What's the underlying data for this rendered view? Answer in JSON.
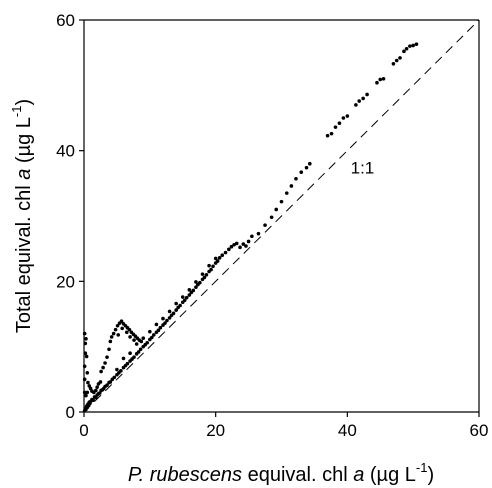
{
  "chart_data": {
    "type": "scatter",
    "title": "",
    "xlabel": {
      "italic_part": "P. rubescens",
      "mid": " equival. chl ",
      "italic_var": "a",
      "unit_open": " (µg L",
      "unit_sup": "-1",
      "unit_close": ")"
    },
    "ylabel": {
      "prefix": "Total equival. chl ",
      "italic_var": "a",
      "unit_open": " (µg L",
      "unit_sup": "-1",
      "unit_close": ")"
    },
    "xlim": [
      0,
      60
    ],
    "ylim": [
      0,
      60
    ],
    "xticks": [
      0,
      20,
      40,
      60
    ],
    "yticks": [
      0,
      20,
      40,
      60
    ],
    "x_tick_labels": [
      "0",
      "20",
      "40",
      "60"
    ],
    "y_tick_labels": [
      "0",
      "20",
      "40",
      "60"
    ],
    "grid": false,
    "reference_line": {
      "label": "1:1",
      "slope": 1,
      "style": "dashed",
      "label_position": [
        40.5,
        36.5
      ]
    },
    "marker_color": "#000000",
    "series": [
      {
        "points": [
          [
            0.1,
            0.2
          ],
          [
            0.2,
            0.5
          ],
          [
            0.3,
            0.4
          ],
          [
            0.4,
            0.9
          ],
          [
            0.5,
            0.7
          ],
          [
            0.6,
            1.2
          ],
          [
            0.7,
            1.0
          ],
          [
            0.8,
            1.5
          ],
          [
            0.9,
            1.3
          ],
          [
            1.0,
            1.6
          ],
          [
            1.2,
            1.9
          ],
          [
            1.4,
            1.8
          ],
          [
            1.6,
            2.3
          ],
          [
            1.8,
            2.2
          ],
          [
            2.0,
            2.6
          ],
          [
            2.2,
            2.8
          ],
          [
            2.4,
            2.9
          ],
          [
            2.6,
            3.3
          ],
          [
            2.8,
            3.4
          ],
          [
            3.0,
            3.6
          ],
          [
            3.2,
            3.9
          ],
          [
            3.5,
            4.1
          ],
          [
            3.8,
            4.5
          ],
          [
            4.0,
            4.6
          ],
          [
            4.3,
            5.0
          ],
          [
            4.6,
            5.3
          ],
          [
            5.0,
            5.7
          ],
          [
            5.3,
            6.0
          ],
          [
            5.6,
            6.3
          ],
          [
            6.0,
            6.8
          ],
          [
            6.3,
            7.1
          ],
          [
            6.6,
            7.4
          ],
          [
            7.0,
            7.8
          ],
          [
            7.3,
            8.1
          ],
          [
            7.6,
            8.4
          ],
          [
            8.0,
            8.9
          ],
          [
            8.3,
            9.2
          ],
          [
            8.6,
            9.6
          ],
          [
            9.0,
            10.0
          ],
          [
            9.3,
            10.3
          ],
          [
            9.6,
            10.6
          ],
          [
            10.0,
            11.1
          ],
          [
            10.3,
            11.4
          ],
          [
            10.6,
            11.8
          ],
          [
            11.0,
            12.2
          ],
          [
            11.3,
            12.5
          ],
          [
            11.6,
            12.9
          ],
          [
            12.0,
            13.3
          ],
          [
            12.3,
            13.6
          ],
          [
            12.6,
            14.0
          ],
          [
            13.0,
            14.4
          ],
          [
            13.3,
            14.8
          ],
          [
            13.6,
            15.1
          ],
          [
            14.0,
            15.6
          ],
          [
            14.3,
            16.0
          ],
          [
            14.6,
            16.3
          ],
          [
            15.0,
            16.8
          ],
          [
            15.3,
            17.1
          ],
          [
            15.6,
            17.5
          ],
          [
            16.0,
            17.9
          ],
          [
            16.3,
            18.3
          ],
          [
            16.6,
            18.6
          ],
          [
            17.0,
            19.1
          ],
          [
            17.3,
            19.5
          ],
          [
            17.6,
            19.8
          ],
          [
            18.0,
            20.3
          ],
          [
            18.3,
            20.6
          ],
          [
            18.6,
            21.0
          ],
          [
            19.0,
            21.5
          ],
          [
            19.3,
            21.8
          ],
          [
            19.6,
            22.3
          ],
          [
            20.0,
            22.8
          ],
          [
            20.3,
            23.1
          ],
          [
            20.6,
            23.6
          ],
          [
            21.0,
            24.0
          ],
          [
            21.5,
            24.4
          ],
          [
            22.0,
            24.9
          ],
          [
            22.4,
            25.3
          ],
          [
            22.8,
            25.6
          ],
          [
            23.2,
            25.8
          ],
          [
            23.7,
            25.2
          ],
          [
            24.2,
            25.7
          ],
          [
            24.6,
            25.4
          ],
          [
            25.0,
            26.1
          ],
          [
            25.5,
            26.9
          ],
          [
            5.0,
            6.5
          ],
          [
            6.0,
            8.2
          ],
          [
            7.0,
            9.0
          ],
          [
            8.0,
            10.4
          ],
          [
            9.0,
            11.3
          ],
          [
            10.0,
            12.3
          ],
          [
            11.0,
            13.4
          ],
          [
            12.0,
            14.3
          ],
          [
            13.0,
            15.4
          ],
          [
            14.0,
            16.6
          ],
          [
            15.0,
            17.6
          ],
          [
            16.0,
            18.7
          ],
          [
            17.0,
            19.9
          ],
          [
            18.0,
            21.1
          ],
          [
            19.0,
            22.4
          ],
          [
            20.0,
            23.5
          ],
          [
            4.5,
            12.0
          ],
          [
            4.8,
            12.6
          ],
          [
            5.1,
            13.2
          ],
          [
            5.4,
            13.6
          ],
          [
            5.7,
            13.9
          ],
          [
            6.0,
            13.5
          ],
          [
            6.3,
            13.2
          ],
          [
            6.6,
            12.9
          ],
          [
            6.9,
            12.6
          ],
          [
            7.2,
            12.2
          ],
          [
            7.5,
            11.9
          ],
          [
            7.8,
            11.6
          ],
          [
            8.1,
            11.3
          ],
          [
            8.4,
            11.0
          ],
          [
            8.7,
            10.8
          ],
          [
            5.2,
            11.8
          ],
          [
            5.8,
            12.8
          ],
          [
            6.5,
            12.2
          ],
          [
            7.0,
            11.5
          ],
          [
            7.6,
            11.0
          ],
          [
            4.2,
            11.5
          ],
          [
            4.0,
            10.8
          ],
          [
            3.8,
            9.6
          ],
          [
            3.5,
            8.4
          ],
          [
            3.2,
            7.5
          ],
          [
            2.9,
            6.8
          ],
          [
            2.6,
            6.2
          ],
          [
            0.1,
            3.0
          ],
          [
            0.1,
            5.0
          ],
          [
            0.1,
            7.0
          ],
          [
            0.2,
            9.0
          ],
          [
            0.2,
            10.5
          ],
          [
            0.1,
            12.0
          ],
          [
            0.3,
            11.2
          ],
          [
            0.4,
            8.5
          ],
          [
            0.5,
            6.0
          ],
          [
            0.6,
            4.5
          ],
          [
            0.8,
            4.0
          ],
          [
            1.0,
            3.6
          ],
          [
            1.2,
            3.2
          ],
          [
            1.5,
            3.0
          ],
          [
            1.8,
            3.3
          ],
          [
            2.0,
            3.8
          ],
          [
            2.2,
            4.3
          ],
          [
            2.5,
            4.6
          ],
          [
            0.3,
            2.5
          ],
          [
            0.5,
            3.0
          ],
          [
            26.5,
            27.3
          ],
          [
            27.5,
            28.6
          ],
          [
            28.5,
            29.8
          ],
          [
            29.2,
            31.0
          ],
          [
            30.0,
            32.2
          ],
          [
            30.8,
            33.5
          ],
          [
            31.5,
            34.6
          ],
          [
            32.2,
            35.7
          ],
          [
            33.0,
            36.7
          ],
          [
            33.8,
            37.4
          ],
          [
            34.3,
            38.0
          ],
          [
            37.0,
            42.3
          ],
          [
            37.6,
            42.6
          ],
          [
            38.2,
            43.6
          ],
          [
            38.8,
            44.2
          ],
          [
            39.4,
            45.0
          ],
          [
            40.0,
            45.3
          ],
          [
            41.3,
            47.0
          ],
          [
            41.8,
            47.6
          ],
          [
            42.4,
            48.0
          ],
          [
            43.0,
            48.6
          ],
          [
            44.5,
            50.4
          ],
          [
            45.0,
            50.9
          ],
          [
            45.5,
            51.0
          ],
          [
            47.0,
            53.3
          ],
          [
            47.5,
            53.8
          ],
          [
            48.0,
            54.2
          ],
          [
            48.6,
            55.2
          ],
          [
            49.0,
            55.6
          ],
          [
            49.5,
            56.0
          ],
          [
            50.0,
            56.1
          ],
          [
            50.5,
            56.3
          ]
        ]
      }
    ]
  }
}
